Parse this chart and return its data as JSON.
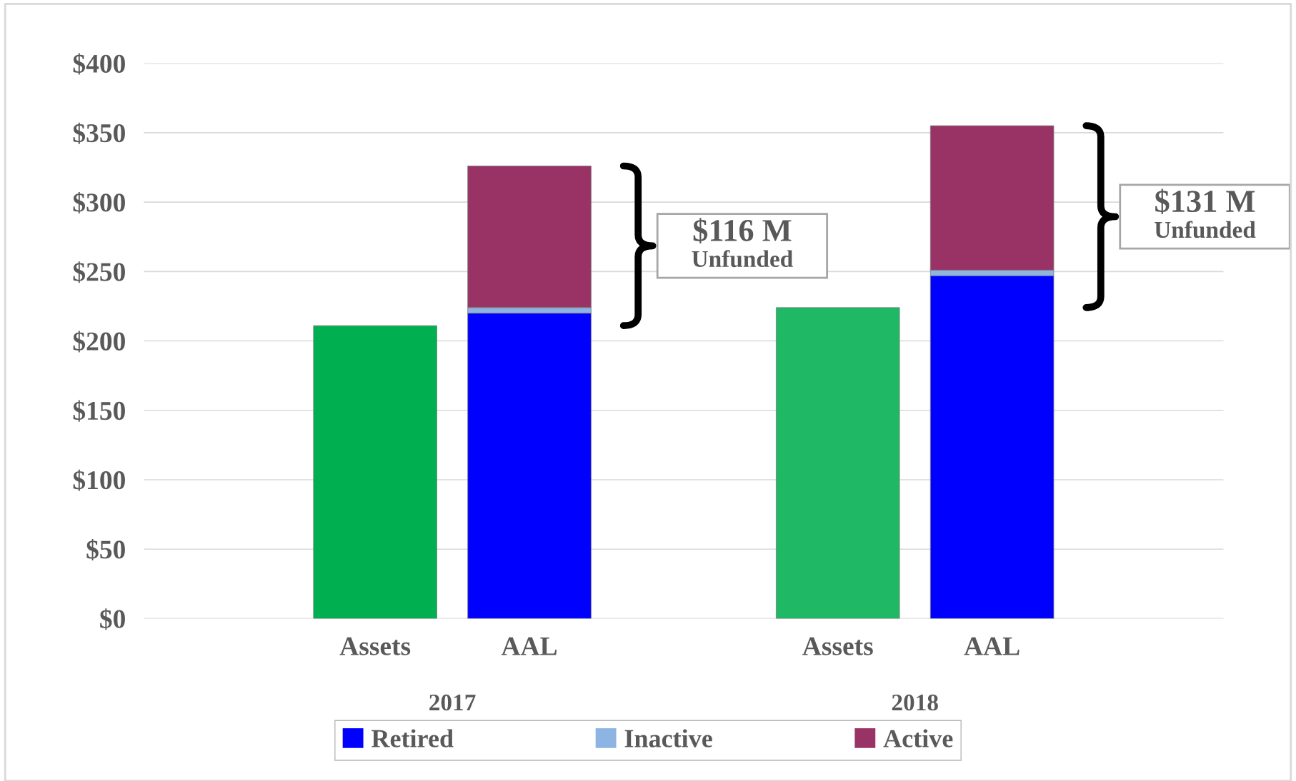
{
  "chart_data": {
    "type": "bar",
    "stacked": true,
    "categories": [
      "Assets",
      "AAL",
      null,
      "Assets",
      "AAL"
    ],
    "series": [
      {
        "colors": [
          "#00b050",
          null,
          null,
          "#1fb864",
          null
        ],
        "values": [
          211,
          null,
          null,
          224,
          null
        ]
      },
      {
        "name": "Retired",
        "color": "#0000ff",
        "values": [
          null,
          220,
          null,
          null,
          247
        ]
      },
      {
        "name": "Inactive",
        "color": "#8db4e2",
        "values": [
          null,
          4,
          null,
          null,
          4
        ]
      },
      {
        "name": "Active",
        "color": "#993366",
        "values": [
          null,
          102,
          null,
          null,
          104
        ]
      }
    ],
    "ylim": [
      0,
      400
    ],
    "yticks": [
      {
        "value": 0,
        "label": "$0"
      },
      {
        "value": 50,
        "label": "$50"
      },
      {
        "value": 100,
        "label": "$100"
      },
      {
        "value": 150,
        "label": "$150"
      },
      {
        "value": 200,
        "label": "$200"
      },
      {
        "value": 250,
        "label": "$250"
      },
      {
        "value": 300,
        "label": "$300"
      },
      {
        "value": 350,
        "label": "$350"
      },
      {
        "value": 400,
        "label": "$400"
      }
    ],
    "grid": "y",
    "legend": "bottom",
    "annotations": [
      "2017",
      "2018",
      "$116 M\nUnfunded",
      "$131 M\nUnfunded"
    ]
  }
}
